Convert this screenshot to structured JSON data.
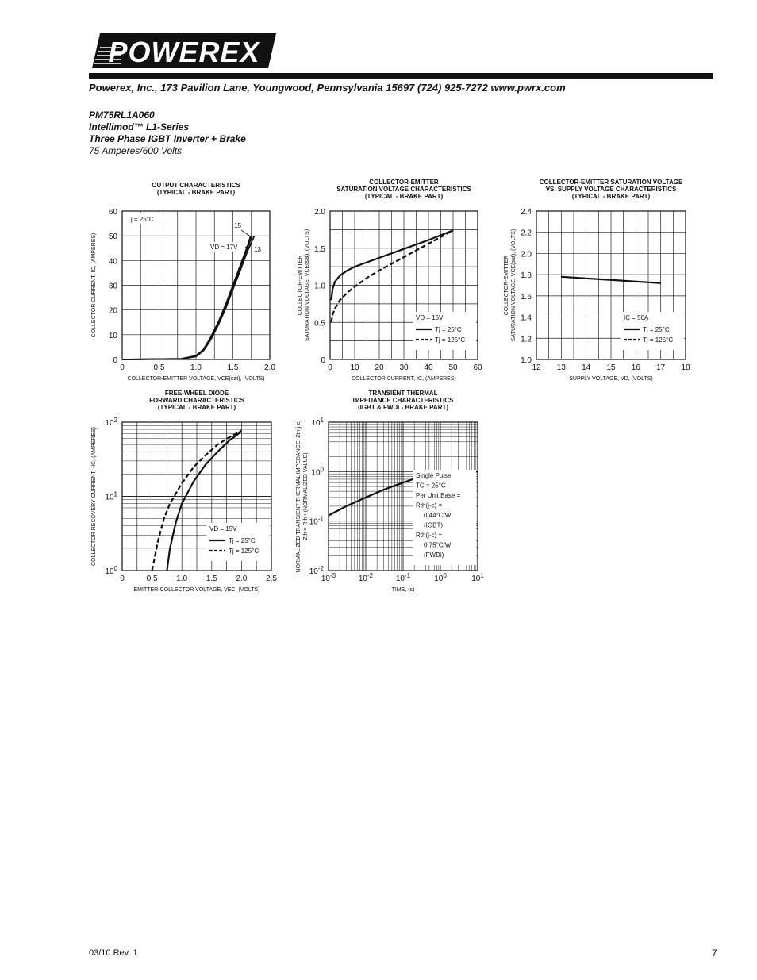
{
  "header": {
    "logo_text": "POWEREX",
    "address": "Powerex, Inc., 173 Pavilion Lane, Youngwood, Pennsylvania  15697   (724) 925-7272  www.pwrx.com"
  },
  "product": {
    "part_number": "PM75RL1A060",
    "series": "Intellimod™  L1-Series",
    "description": "Three Phase IGBT Inverter + Brake",
    "rating": "75 Amperes/600 Volts"
  },
  "footer": {
    "revision": "03/10 Rev. 1",
    "page": "7"
  },
  "chart_data": [
    {
      "id": "output",
      "type": "line",
      "title": [
        "OUTPUT CHARACTERISTICS",
        "(TYPICAL - BRAKE PART)"
      ],
      "xlabel": "COLLECTOR-EMITTER VOLTAGE, VCE(sat), (VOLTS)",
      "ylabel": "COLLECTOR CURRENT, IC, (AMPERES)",
      "xlim": [
        0,
        2.0
      ],
      "ylim": [
        0,
        60
      ],
      "xticks": [
        "0",
        "0.5",
        "1.0",
        "1.5",
        "2.0"
      ],
      "yticks": [
        "0",
        "10",
        "20",
        "30",
        "40",
        "50",
        "60"
      ],
      "grid": true,
      "annotations": [
        "Tj = 25°C",
        "VD = 17V",
        "15",
        "13"
      ],
      "series": [
        {
          "name": "17V",
          "x": [
            0,
            0.8,
            1.0,
            1.1,
            1.2,
            1.3,
            1.4,
            1.5,
            1.6,
            1.7,
            1.74
          ],
          "y": [
            0,
            0.3,
            1.5,
            4,
            9,
            15,
            22,
            30,
            38,
            46,
            50
          ]
        },
        {
          "name": "15",
          "x": [
            0,
            0.8,
            1.0,
            1.1,
            1.2,
            1.3,
            1.4,
            1.5,
            1.6,
            1.7,
            1.76
          ],
          "y": [
            0,
            0.3,
            1.4,
            3.8,
            8.6,
            14.5,
            21.5,
            29.5,
            37.5,
            45.5,
            50
          ]
        },
        {
          "name": "13",
          "x": [
            0,
            0.8,
            1.0,
            1.1,
            1.2,
            1.3,
            1.4,
            1.5,
            1.6,
            1.7,
            1.79
          ],
          "y": [
            0,
            0.2,
            1.2,
            3.5,
            8,
            13.8,
            20.5,
            28.3,
            36,
            44,
            50
          ]
        }
      ]
    },
    {
      "id": "vce_sat",
      "type": "line",
      "title": [
        "COLLECTOR-EMITTER",
        "SATURATION VOLTAGE CHARACTERISTICS",
        "(TYPICAL - BRAKE PART)"
      ],
      "xlabel": "COLLECTOR CURRENT, IC, (AMPERES)",
      "ylabel": [
        "COLLECTOR-EMITTER",
        "SATURATION VOLTAGE, VCE(sat), (VOLTS)"
      ],
      "xlim": [
        0,
        60
      ],
      "ylim": [
        0,
        2.0
      ],
      "xticks": [
        "0",
        "10",
        "20",
        "30",
        "40",
        "50",
        "60"
      ],
      "yticks": [
        "0",
        "0.5",
        "1.0",
        "1.5",
        "2.0"
      ],
      "grid": true,
      "legend": [
        "VD = 15V",
        "Tj = 25°C",
        "Tj = 125°C"
      ],
      "series": [
        {
          "name": "Tj = 25°C",
          "style": "solid",
          "x": [
            0.5,
            1,
            2,
            4,
            7,
            10,
            15,
            20,
            30,
            40,
            50
          ],
          "y": [
            0.8,
            0.95,
            1.05,
            1.13,
            1.2,
            1.25,
            1.31,
            1.37,
            1.49,
            1.61,
            1.74
          ]
        },
        {
          "name": "Tj = 125°C",
          "style": "dashed",
          "x": [
            0.5,
            1,
            2,
            4,
            7,
            10,
            15,
            20,
            30,
            40,
            50
          ],
          "y": [
            0.5,
            0.6,
            0.69,
            0.8,
            0.9,
            0.98,
            1.1,
            1.2,
            1.38,
            1.56,
            1.74
          ]
        }
      ]
    },
    {
      "id": "vce_vs_vd",
      "type": "line",
      "title": [
        "COLLECTOR-EMITTER SATURATION VOLTAGE",
        "VS. SUPPLY VOLTAGE CHARACTERISTICS",
        "(TYPICAL - BRAKE PART)"
      ],
      "xlabel": "SUPPLY VOLTAGE, VD, (VOLTS)",
      "ylabel": [
        "COLLECTOR-EMITTER",
        "SATURATION VOLTAGE, VCE(sat), (VOLTS)"
      ],
      "xlim": [
        12,
        18
      ],
      "ylim": [
        1.0,
        2.4
      ],
      "xticks": [
        "12",
        "13",
        "14",
        "15",
        "16",
        "17",
        "18"
      ],
      "yticks": [
        "1.0",
        "1.2",
        "1.4",
        "1.6",
        "1.8",
        "2.0",
        "2.2",
        "2.4"
      ],
      "grid": true,
      "legend": [
        "IC = 50A",
        "Tj = 25°C",
        "Tj = 125°C"
      ],
      "series": [
        {
          "name": "Tj = 25°C",
          "style": "solid",
          "x": [
            13,
            17
          ],
          "y": [
            1.78,
            1.72
          ]
        }
      ]
    },
    {
      "id": "fwd",
      "type": "line",
      "title": [
        "FREE-WHEEL DIODE",
        "FORWARD CHARACTERISTICS",
        "(TYPICAL - BRAKE PART)"
      ],
      "xlabel": "EMITTER-COLLECTOR VOLTAGE, VEC, (VOLTS)",
      "ylabel": "COLLECTOR RECOVERY CURRENT, -IC, (AMPERES)",
      "xlim": [
        0,
        2.5
      ],
      "ylim": [
        1,
        100
      ],
      "yscale": "log",
      "xticks": [
        "0",
        "0.5",
        "1.0",
        "1.5",
        "2.0",
        "2.5"
      ],
      "yticks": [
        "10^0",
        "10^1",
        "10^2"
      ],
      "grid": true,
      "legend": [
        "VD = 15V",
        "Tj = 25°C",
        "Tj = 125°C"
      ],
      "series": [
        {
          "name": "Tj = 25°C",
          "style": "solid",
          "x": [
            0.75,
            0.8,
            0.9,
            1.0,
            1.2,
            1.4,
            1.6,
            1.8,
            2.0
          ],
          "y": [
            1,
            2,
            4.5,
            8,
            16,
            27,
            40,
            57,
            75
          ]
        },
        {
          "name": "Tj = 125°C",
          "style": "dashed",
          "x": [
            0.5,
            0.6,
            0.7,
            0.8,
            1.0,
            1.2,
            1.4,
            1.6,
            1.8,
            2.0
          ],
          "y": [
            1,
            2.5,
            5,
            8,
            15,
            25,
            36,
            50,
            63,
            77
          ]
        }
      ]
    },
    {
      "id": "zth",
      "type": "line",
      "title": [
        "TRANSIENT THERMAL",
        "IMPEDANCE CHARACTERISTICS",
        "(IGBT & FWDi - BRAKE PART)"
      ],
      "xlabel": "TIME, (s)",
      "ylabel": [
        "NORMALIZED TRANSIENT THERMAL IMPEDANCE, Zth(j-c)",
        "Zth = Rth • (NORMALIZED VALUE)"
      ],
      "xlim": [
        0.001,
        10
      ],
      "ylim": [
        0.01,
        10
      ],
      "xscale": "log",
      "yscale": "log",
      "xticks": [
        "10^-3",
        "10^-2",
        "10^-1",
        "10^0",
        "10^1"
      ],
      "yticks": [
        "10^-2",
        "10^-1",
        "10^0",
        "10^1"
      ],
      "grid": true,
      "legend": [
        "Single Pulse",
        "TC = 25°C",
        "Per Unit Base =",
        "Rth(j-c) =",
        "0.44°C/W",
        "(IGBT)",
        "Rth(j-c) =",
        "0.75°C/W",
        "(FWDi)"
      ],
      "series": [
        {
          "name": "Zth",
          "style": "solid",
          "x": [
            0.001,
            0.003,
            0.01,
            0.03,
            0.1,
            0.3,
            1,
            3,
            10
          ],
          "y": [
            0.13,
            0.2,
            0.3,
            0.43,
            0.6,
            0.8,
            0.93,
            0.98,
            1.0
          ]
        }
      ]
    }
  ]
}
